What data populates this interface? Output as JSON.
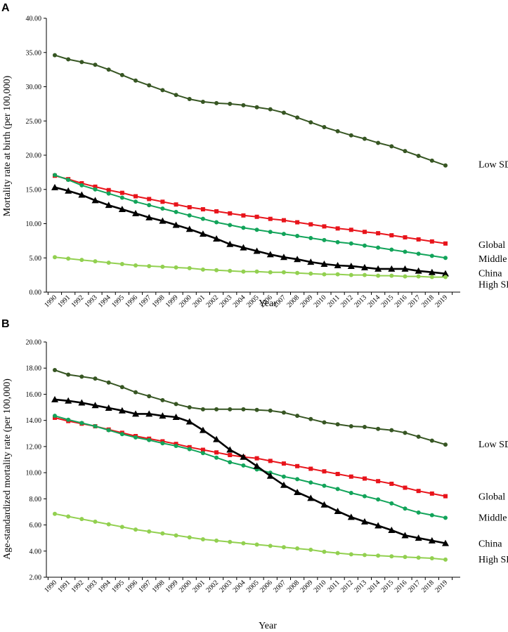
{
  "colors": {
    "low_sdi": "#375623",
    "global": "#e8141b",
    "middle_sdi": "#12a45a",
    "china": "#000000",
    "high_sdi": "#92d050"
  },
  "chart_data": [
    {
      "panel": "A",
      "type": "line",
      "xlabel": "Year",
      "ylabel": "Mortality rate at birth (per 100,000)",
      "ylim": [
        0,
        40
      ],
      "yticks": [
        "0.00",
        "5.00",
        "10.00",
        "15.00",
        "20.00",
        "25.00",
        "30.00",
        "35.00",
        "40.00"
      ],
      "x": [
        "1990",
        "1991",
        "1992",
        "1993",
        "1994",
        "1995",
        "1996",
        "1997",
        "1998",
        "1999",
        "2000",
        "2001",
        "2002",
        "2003",
        "2004",
        "2005",
        "2006",
        "2007",
        "2008",
        "2009",
        "2010",
        "2011",
        "2012",
        "2013",
        "2014",
        "2015",
        "2016",
        "2017",
        "2018",
        "2019"
      ],
      "series": [
        {
          "name": "Low SDI",
          "values": [
            34.6,
            34.0,
            33.6,
            33.2,
            32.5,
            31.7,
            30.9,
            30.2,
            29.5,
            28.8,
            28.2,
            27.8,
            27.6,
            27.5,
            27.3,
            27.0,
            26.7,
            26.2,
            25.5,
            24.8,
            24.1,
            23.5,
            22.9,
            22.4,
            21.8,
            21.3,
            20.6,
            19.9,
            19.2,
            18.5
          ],
          "color_key": "low_sdi",
          "marker": "circle"
        },
        {
          "name": "Global",
          "values": [
            17.0,
            16.5,
            15.9,
            15.4,
            14.9,
            14.5,
            14.0,
            13.6,
            13.2,
            12.8,
            12.4,
            12.1,
            11.8,
            11.5,
            11.2,
            11.0,
            10.7,
            10.5,
            10.2,
            9.9,
            9.6,
            9.3,
            9.1,
            8.8,
            8.6,
            8.3,
            8.0,
            7.7,
            7.4,
            7.1
          ],
          "color_key": "global",
          "marker": "square"
        },
        {
          "name": "Middle SDI",
          "values": [
            17.1,
            16.4,
            15.6,
            15.0,
            14.4,
            13.8,
            13.2,
            12.7,
            12.2,
            11.7,
            11.2,
            10.7,
            10.2,
            9.8,
            9.4,
            9.1,
            8.8,
            8.5,
            8.2,
            7.9,
            7.6,
            7.3,
            7.1,
            6.8,
            6.5,
            6.2,
            5.9,
            5.6,
            5.3,
            5.0
          ],
          "color_key": "middle_sdi",
          "marker": "circle"
        },
        {
          "name": "China",
          "values": [
            15.3,
            14.8,
            14.2,
            13.4,
            12.7,
            12.1,
            11.5,
            10.9,
            10.4,
            9.8,
            9.2,
            8.5,
            7.8,
            7.0,
            6.5,
            6.0,
            5.5,
            5.1,
            4.8,
            4.4,
            4.1,
            3.9,
            3.8,
            3.6,
            3.4,
            3.4,
            3.4,
            3.1,
            2.9,
            2.7
          ],
          "color_key": "china",
          "marker": "triangle"
        },
        {
          "name": "High SDI",
          "values": [
            5.1,
            4.9,
            4.7,
            4.5,
            4.3,
            4.1,
            3.9,
            3.8,
            3.7,
            3.6,
            3.5,
            3.3,
            3.2,
            3.1,
            3.0,
            3.0,
            2.9,
            2.9,
            2.8,
            2.7,
            2.6,
            2.6,
            2.5,
            2.5,
            2.4,
            2.4,
            2.3,
            2.3,
            2.2,
            2.2
          ],
          "color_key": "high_sdi",
          "marker": "circle"
        }
      ]
    },
    {
      "panel": "B",
      "type": "line",
      "xlabel": "Year",
      "ylabel": "Age-standardized mortality rate (per 100,000)",
      "ylim": [
        2,
        20
      ],
      "yticks": [
        "2.00",
        "4.00",
        "6.00",
        "8.00",
        "10.00",
        "12.00",
        "14.00",
        "16.00",
        "18.00",
        "20.00"
      ],
      "x": [
        "1990",
        "1991",
        "1992",
        "1993",
        "1994",
        "1995",
        "1996",
        "1997",
        "1998",
        "1999",
        "2000",
        "2001",
        "2002",
        "2003",
        "2004",
        "2005",
        "2006",
        "2007",
        "2008",
        "2009",
        "2010",
        "2011",
        "2012",
        "2013",
        "2014",
        "2015",
        "2016",
        "2017",
        "2018",
        "2019"
      ],
      "series": [
        {
          "name": "Low SDI",
          "values": [
            17.85,
            17.5,
            17.35,
            17.2,
            16.9,
            16.55,
            16.15,
            15.85,
            15.55,
            15.25,
            15.0,
            14.85,
            14.85,
            14.85,
            14.85,
            14.8,
            14.75,
            14.6,
            14.35,
            14.1,
            13.85,
            13.7,
            13.55,
            13.5,
            13.35,
            13.25,
            13.05,
            12.75,
            12.45,
            12.15
          ],
          "color_key": "low_sdi",
          "marker": "circle"
        },
        {
          "name": "Global",
          "values": [
            14.2,
            13.95,
            13.75,
            13.55,
            13.3,
            13.05,
            12.8,
            12.6,
            12.4,
            12.2,
            11.95,
            11.75,
            11.55,
            11.35,
            11.2,
            11.1,
            10.9,
            10.7,
            10.5,
            10.3,
            10.1,
            9.9,
            9.7,
            9.55,
            9.35,
            9.15,
            8.85,
            8.6,
            8.4,
            8.2
          ],
          "color_key": "global",
          "marker": "square"
        },
        {
          "name": "Middle SDI",
          "values": [
            14.35,
            14.05,
            13.8,
            13.55,
            13.25,
            12.95,
            12.7,
            12.5,
            12.25,
            12.05,
            11.8,
            11.5,
            11.15,
            10.8,
            10.55,
            10.25,
            10.0,
            9.7,
            9.5,
            9.25,
            9.0,
            8.75,
            8.45,
            8.2,
            7.95,
            7.65,
            7.25,
            6.95,
            6.75,
            6.55
          ],
          "color_key": "middle_sdi",
          "marker": "circle"
        },
        {
          "name": "China",
          "values": [
            15.6,
            15.5,
            15.35,
            15.15,
            14.95,
            14.75,
            14.5,
            14.5,
            14.35,
            14.25,
            13.9,
            13.25,
            12.55,
            11.75,
            11.2,
            10.5,
            9.75,
            9.05,
            8.5,
            8.05,
            7.55,
            7.05,
            6.6,
            6.25,
            5.95,
            5.6,
            5.2,
            5.0,
            4.8,
            4.6
          ],
          "color_key": "china",
          "marker": "triangle"
        },
        {
          "name": "High SDI",
          "values": [
            6.85,
            6.65,
            6.45,
            6.25,
            6.05,
            5.85,
            5.65,
            5.5,
            5.35,
            5.2,
            5.05,
            4.9,
            4.8,
            4.7,
            4.6,
            4.5,
            4.4,
            4.3,
            4.2,
            4.1,
            3.95,
            3.85,
            3.75,
            3.7,
            3.65,
            3.6,
            3.55,
            3.5,
            3.45,
            3.35
          ],
          "color_key": "high_sdi",
          "marker": "circle"
        }
      ]
    }
  ]
}
